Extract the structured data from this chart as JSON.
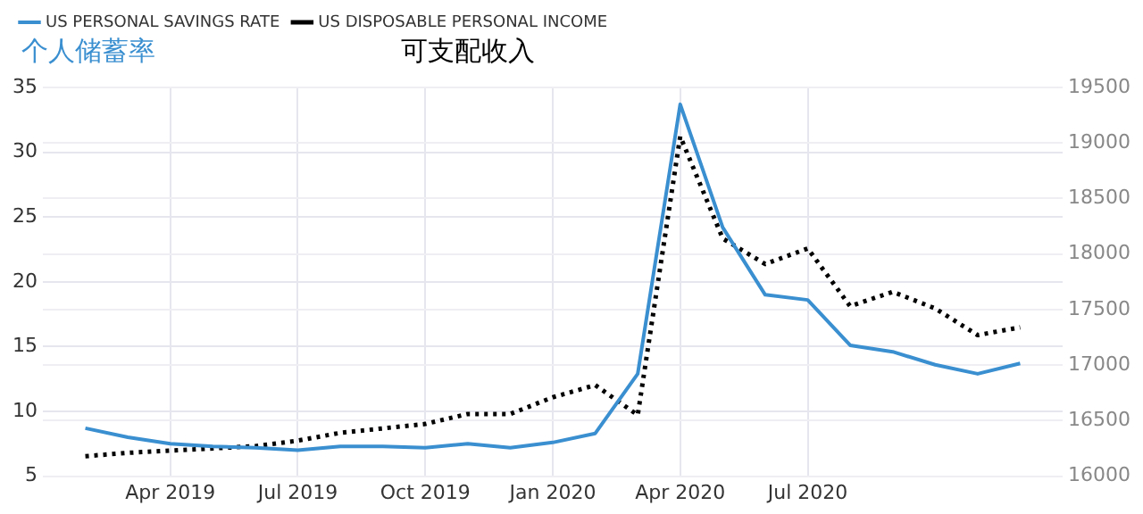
{
  "chart_data": {
    "type": "line",
    "x": [
      "2019-02",
      "2019-03",
      "2019-04",
      "2019-05",
      "2019-06",
      "2019-07",
      "2019-08",
      "2019-09",
      "2019-10",
      "2019-11",
      "2019-12",
      "2020-01",
      "2020-02",
      "2020-03",
      "2020-04",
      "2020-05",
      "2020-06",
      "2020-07",
      "2020-08",
      "2020-09",
      "2020-10",
      "2020-11",
      "2020-12"
    ],
    "series": [
      {
        "name": "US PERSONAL SAVINGS RATE",
        "color": "#3a8fd0",
        "line_style": "solid",
        "values": [
          8.7,
          8.0,
          7.5,
          7.3,
          7.2,
          7.0,
          7.3,
          7.3,
          7.2,
          7.5,
          7.2,
          7.6,
          8.3,
          12.9,
          33.7,
          24.2,
          19.0,
          18.6,
          15.1,
          14.6,
          13.6,
          12.9,
          13.7
        ]
      },
      {
        "name": "US DISPOSABLE PERSONAL INCOME",
        "color": "#000000",
        "line_style": "dotted",
        "axis": "y2",
        "values": [
          16180,
          16210,
          16230,
          16250,
          16270,
          16320,
          16390,
          16430,
          16470,
          16560,
          16560,
          16710,
          16820,
          16550,
          19060,
          18140,
          17910,
          18050,
          17530,
          17660,
          17510,
          17270,
          17340
        ]
      }
    ],
    "xlim": [
      "2019-01",
      "2021-01"
    ],
    "xticks": [
      {
        "value": "2019-04",
        "label": "Apr 2019"
      },
      {
        "value": "2019-07",
        "label": "Jul 2019"
      },
      {
        "value": "2019-10",
        "label": "Oct 2019"
      },
      {
        "value": "2020-01",
        "label": "Jan 2020"
      },
      {
        "value": "2020-04",
        "label": "Apr 2020"
      },
      {
        "value": "2020-07",
        "label": "Jul 2020"
      }
    ],
    "ylim": [
      5,
      35
    ],
    "yticks": [
      5,
      10,
      15,
      20,
      25,
      30,
      35
    ],
    "y2lim": [
      16000,
      19500
    ],
    "y2ticks": [
      16000,
      16500,
      17000,
      17500,
      18000,
      18500,
      19000,
      19500
    ],
    "annotations": [
      "个人储蓄率",
      "可支配收入"
    ],
    "grid": true,
    "legend": "top left",
    "marker": "none"
  }
}
